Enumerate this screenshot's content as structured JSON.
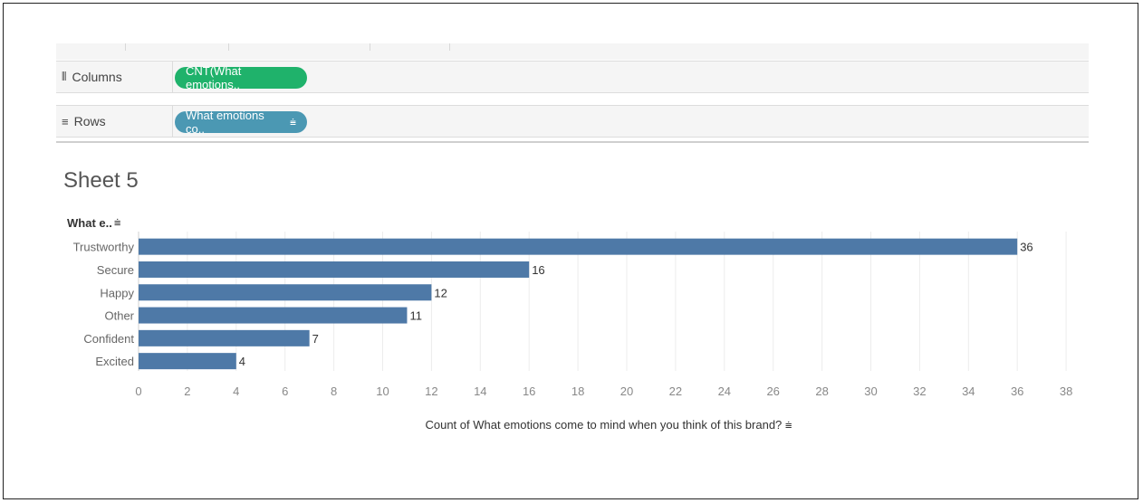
{
  "shelves": {
    "columns": {
      "label": "Columns",
      "icon": "columns-icon",
      "pill": "CNT(What emotions.."
    },
    "rows": {
      "label": "Rows",
      "icon": "rows-icon",
      "pill": "What emotions co..",
      "pill_icon": "sort-icon"
    }
  },
  "sheet": {
    "title": "Sheet 5"
  },
  "chart_data": {
    "type": "bar",
    "orientation": "horizontal",
    "row_header": "What e..",
    "categories": [
      "Trustworthy",
      "Secure",
      "Happy",
      "Other",
      "Confident",
      "Excited"
    ],
    "values": [
      36,
      16,
      12,
      11,
      7,
      4
    ],
    "xlabel": "Count of What emotions come to mind when you think of this brand?",
    "xlim": [
      0,
      39
    ],
    "xticks": [
      0,
      2,
      4,
      6,
      8,
      10,
      12,
      14,
      16,
      18,
      20,
      22,
      24,
      26,
      28,
      30,
      32,
      34,
      36,
      38
    ],
    "grid": true,
    "bar_color": "#4e79a7"
  },
  "colors": {
    "green_pill": "#1fb26b",
    "blue_pill": "#4b98b3"
  }
}
